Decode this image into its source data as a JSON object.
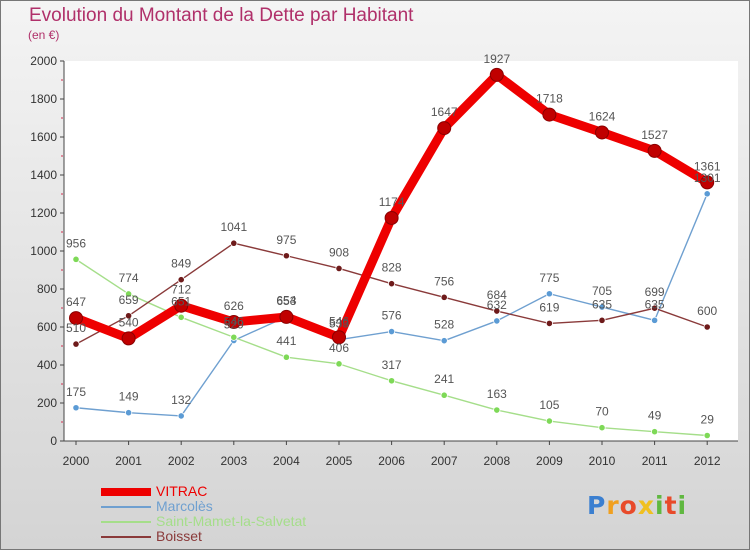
{
  "header": {
    "title": "Evolution du Montant de la Dette par Habitant",
    "subtitle": "(en €)"
  },
  "logo": {
    "letters": [
      "P",
      "r",
      "o",
      "x",
      "i",
      "t",
      "i"
    ],
    "colors": [
      "#3b7fd0",
      "#f0a020",
      "#e84a2a",
      "#f0c020",
      "#60b840",
      "#e84a2a",
      "#60b840"
    ]
  },
  "chart_data": {
    "type": "line",
    "title": "Evolution du Montant de la Dette par Habitant",
    "subtitle": "(en €)",
    "x": [
      "2000",
      "2001",
      "2002",
      "2003",
      "2004",
      "2005",
      "2006",
      "2007",
      "2008",
      "2009",
      "2010",
      "2011",
      "2012"
    ],
    "ylim": [
      0,
      2000
    ],
    "yticks": [
      0,
      200,
      400,
      600,
      800,
      1000,
      1200,
      1400,
      1600,
      1800,
      2000
    ],
    "grid": false,
    "legend_position": "bottom-left",
    "series": [
      {
        "name": "VITRAC",
        "color": "#ee0000",
        "marker": "#c00000",
        "values": [
          647,
          540,
          712,
          626,
          653,
          546,
          1174,
          1647,
          1927,
          1718,
          1624,
          1527,
          1361
        ]
      },
      {
        "name": "Marcolès",
        "color": "#6fa0d0",
        "marker": "#5b9bd5",
        "values": [
          175,
          149,
          132,
          529,
          654,
          533,
          576,
          528,
          632,
          775,
          705,
          635,
          1301
        ]
      },
      {
        "name": "Saint-Mamet-la-Salvetat",
        "color": "#a5de8a",
        "marker": "#7ed957",
        "values": [
          956,
          774,
          651,
          546,
          441,
          406,
          317,
          241,
          163,
          105,
          70,
          49,
          29
        ]
      },
      {
        "name": "Boisset",
        "color": "#8a3a3a",
        "marker": "#6e1a1a",
        "values": [
          510,
          659,
          849,
          1041,
          975,
          908,
          828,
          756,
          684,
          619,
          635,
          699,
          600
        ]
      }
    ],
    "data_labels": [
      [
        "647",
        "540",
        "712",
        "626",
        "653",
        "546",
        "1174",
        "1647",
        "1927",
        "1718",
        "1624",
        "1527",
        "1361"
      ],
      [
        "175",
        "149",
        "132",
        "529",
        "654",
        "533",
        "576",
        "528",
        "632",
        "775",
        "705",
        "635",
        "1301"
      ],
      [
        "956",
        "774",
        "651",
        "546",
        "441",
        "406",
        "317",
        "241",
        "163",
        "105",
        "70",
        "49",
        "29"
      ],
      [
        "510",
        "659",
        "849",
        "1041",
        "975",
        "908",
        "828",
        "756",
        "684",
        "619",
        "635",
        "699",
        "600"
      ]
    ]
  }
}
